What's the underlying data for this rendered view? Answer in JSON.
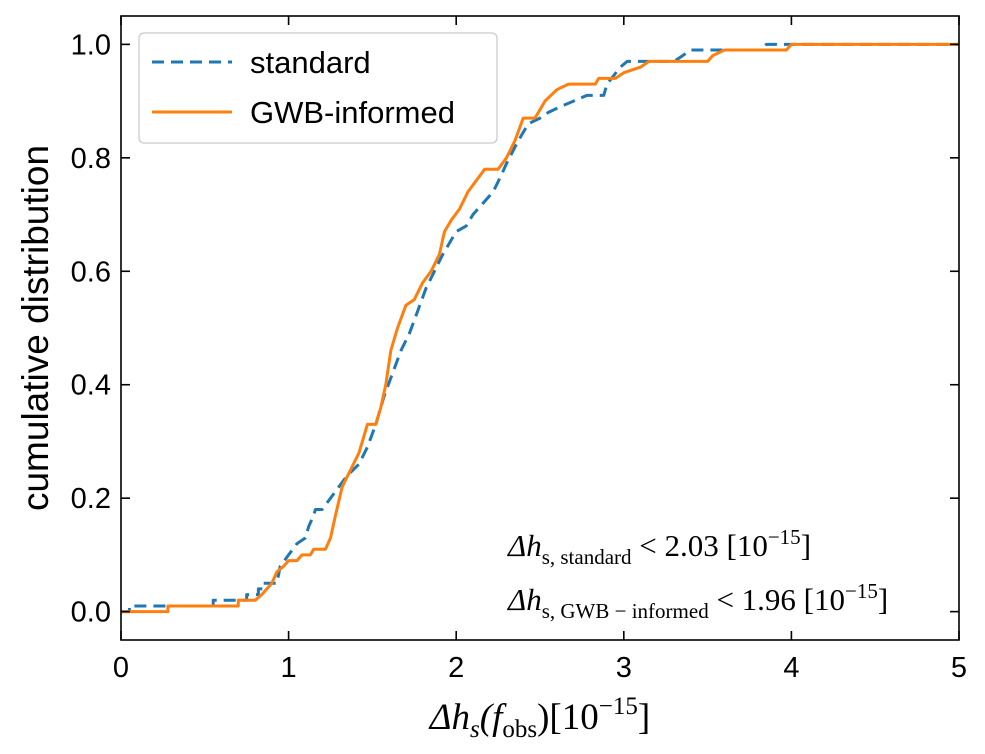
{
  "chart_data": {
    "type": "line",
    "title": "",
    "xlabel": {
      "main": "Δh",
      "sub": "s",
      "paren_open": "(f",
      "paren_sub": "obs",
      "paren_close": ")",
      "unit_open": "[10",
      "unit_exp": "−15",
      "unit_close": "]"
    },
    "ylabel": "cumulative distribution",
    "xlim": [
      0,
      5
    ],
    "ylim": [
      -0.05,
      1.05
    ],
    "xticks": [
      0,
      1,
      2,
      3,
      4,
      5
    ],
    "xtick_labels": [
      "0",
      "1",
      "2",
      "3",
      "4",
      "5"
    ],
    "yticks": [
      0.0,
      0.2,
      0.4,
      0.6,
      0.8,
      1.0
    ],
    "ytick_labels": [
      "0.0",
      "0.2",
      "0.4",
      "0.6",
      "0.8",
      "1.0"
    ],
    "legend_position": "top-left",
    "series": [
      {
        "name": "standard",
        "color": "#1f77b4",
        "dash": "dashed",
        "points": [
          [
            0,
            0
          ],
          [
            0.05,
            0
          ],
          [
            0.05,
            0.01
          ],
          [
            0.55,
            0.01
          ],
          [
            0.55,
            0.02
          ],
          [
            0.75,
            0.02
          ],
          [
            0.75,
            0.03
          ],
          [
            0.82,
            0.03
          ],
          [
            0.82,
            0.04
          ],
          [
            0.85,
            0.04
          ],
          [
            0.85,
            0.05
          ],
          [
            0.93,
            0.05
          ],
          [
            0.95,
            0.08
          ],
          [
            1.0,
            0.1
          ],
          [
            1.05,
            0.12
          ],
          [
            1.1,
            0.13
          ],
          [
            1.12,
            0.15
          ],
          [
            1.15,
            0.17
          ],
          [
            1.16,
            0.18
          ],
          [
            1.2,
            0.18
          ],
          [
            1.25,
            0.2
          ],
          [
            1.3,
            0.22
          ],
          [
            1.35,
            0.24
          ],
          [
            1.42,
            0.26
          ],
          [
            1.47,
            0.29
          ],
          [
            1.52,
            0.33
          ],
          [
            1.57,
            0.38
          ],
          [
            1.62,
            0.42
          ],
          [
            1.67,
            0.46
          ],
          [
            1.72,
            0.49
          ],
          [
            1.77,
            0.53
          ],
          [
            1.82,
            0.57
          ],
          [
            1.87,
            0.6
          ],
          [
            1.92,
            0.63
          ],
          [
            2.0,
            0.67
          ],
          [
            2.06,
            0.68
          ],
          [
            2.1,
            0.7
          ],
          [
            2.16,
            0.72
          ],
          [
            2.22,
            0.74
          ],
          [
            2.27,
            0.77
          ],
          [
            2.3,
            0.79
          ],
          [
            2.37,
            0.83
          ],
          [
            2.43,
            0.86
          ],
          [
            2.5,
            0.87
          ],
          [
            2.55,
            0.88
          ],
          [
            2.62,
            0.89
          ],
          [
            2.7,
            0.9
          ],
          [
            2.78,
            0.91
          ],
          [
            2.88,
            0.91
          ],
          [
            2.9,
            0.93
          ],
          [
            2.98,
            0.96
          ],
          [
            3.02,
            0.97
          ],
          [
            3.3,
            0.97
          ],
          [
            3.35,
            0.98
          ],
          [
            3.4,
            0.99
          ],
          [
            3.82,
            0.99
          ],
          [
            3.85,
            1.0
          ],
          [
            5.0,
            1.0
          ]
        ]
      },
      {
        "name": "GWB-informed",
        "color": "#ff7f0e",
        "dash": "solid",
        "points": [
          [
            0,
            0
          ],
          [
            0.28,
            0
          ],
          [
            0.28,
            0.01
          ],
          [
            0.7,
            0.01
          ],
          [
            0.7,
            0.02
          ],
          [
            0.8,
            0.02
          ],
          [
            0.84,
            0.03
          ],
          [
            0.9,
            0.05
          ],
          [
            0.93,
            0.07
          ],
          [
            0.97,
            0.08
          ],
          [
            1.0,
            0.09
          ],
          [
            1.05,
            0.09
          ],
          [
            1.08,
            0.1
          ],
          [
            1.13,
            0.1
          ],
          [
            1.15,
            0.11
          ],
          [
            1.22,
            0.11
          ],
          [
            1.25,
            0.13
          ],
          [
            1.28,
            0.17
          ],
          [
            1.32,
            0.22
          ],
          [
            1.37,
            0.25
          ],
          [
            1.42,
            0.28
          ],
          [
            1.47,
            0.33
          ],
          [
            1.52,
            0.33
          ],
          [
            1.55,
            0.36
          ],
          [
            1.58,
            0.4
          ],
          [
            1.61,
            0.46
          ],
          [
            1.65,
            0.5
          ],
          [
            1.7,
            0.54
          ],
          [
            1.75,
            0.55
          ],
          [
            1.8,
            0.58
          ],
          [
            1.85,
            0.6
          ],
          [
            1.9,
            0.63
          ],
          [
            1.93,
            0.67
          ],
          [
            1.97,
            0.69
          ],
          [
            2.02,
            0.71
          ],
          [
            2.07,
            0.74
          ],
          [
            2.12,
            0.76
          ],
          [
            2.17,
            0.78
          ],
          [
            2.25,
            0.78
          ],
          [
            2.3,
            0.8
          ],
          [
            2.35,
            0.83
          ],
          [
            2.4,
            0.87
          ],
          [
            2.47,
            0.87
          ],
          [
            2.53,
            0.9
          ],
          [
            2.6,
            0.92
          ],
          [
            2.67,
            0.93
          ],
          [
            2.83,
            0.93
          ],
          [
            2.85,
            0.94
          ],
          [
            2.95,
            0.94
          ],
          [
            3.0,
            0.95
          ],
          [
            3.1,
            0.96
          ],
          [
            3.15,
            0.97
          ],
          [
            3.5,
            0.97
          ],
          [
            3.53,
            0.98
          ],
          [
            3.6,
            0.99
          ],
          [
            3.97,
            0.99
          ],
          [
            4.0,
            1.0
          ],
          [
            5.0,
            1.0
          ]
        ]
      }
    ],
    "annotations": [
      {
        "main": "Δh",
        "sub": "s, standard",
        "relation": " < 2.03 [10",
        "exp": "−15",
        "close": "]"
      },
      {
        "main": "Δh",
        "sub": "s, GWB − informed",
        "relation": " < 1.96 [10",
        "exp": "−15",
        "close": "]"
      }
    ]
  }
}
